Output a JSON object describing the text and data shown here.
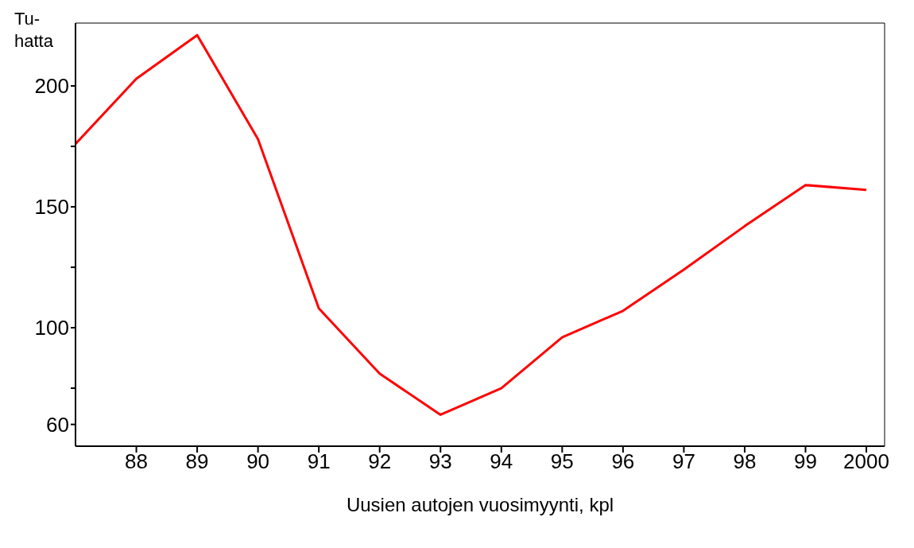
{
  "chart_data": {
    "type": "line",
    "ylabel": "Tu-\nhatta",
    "xlabel": "Uusien autojen vuosimyynti, kpl",
    "x": [
      1987,
      1988,
      1989,
      1990,
      1991,
      1992,
      1993,
      1994,
      1995,
      1996,
      1997,
      1998,
      1999,
      2000
    ],
    "series": [
      {
        "color": "#ff0000",
        "values": [
          176,
          203,
          221,
          178,
          108,
          81,
          64,
          75,
          96,
          107,
          124,
          142,
          159,
          157
        ]
      }
    ],
    "xlim": [
      1987,
      2000.3
    ],
    "xticks": [
      {
        "value": 1988,
        "label": "88"
      },
      {
        "value": 1989,
        "label": "89"
      },
      {
        "value": 1990,
        "label": "90"
      },
      {
        "value": 1991,
        "label": "91"
      },
      {
        "value": 1992,
        "label": "92"
      },
      {
        "value": 1993,
        "label": "93"
      },
      {
        "value": 1994,
        "label": "94"
      },
      {
        "value": 1995,
        "label": "95"
      },
      {
        "value": 1996,
        "label": "96"
      },
      {
        "value": 1997,
        "label": "97"
      },
      {
        "value": 1998,
        "label": "98"
      },
      {
        "value": 1999,
        "label": "99"
      },
      {
        "value": 2000,
        "label": "2000"
      }
    ],
    "ylim": [
      51,
      226
    ],
    "yticks": [
      60,
      {
        "value": 75,
        "label": null
      },
      100,
      {
        "value": 125,
        "label": null
      },
      150,
      {
        "value": 175,
        "label": null
      },
      200
    ],
    "grid": false,
    "legend": false,
    "marker": "none",
    "line_style": "solid"
  }
}
